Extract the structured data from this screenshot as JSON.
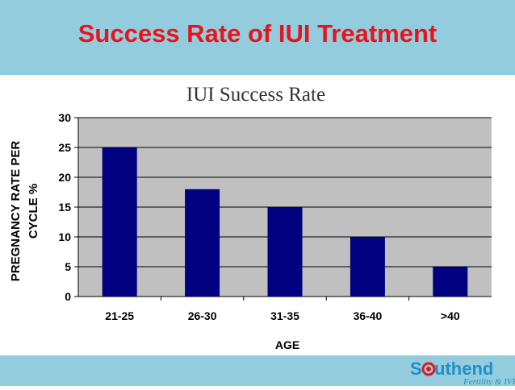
{
  "slide": {
    "title": "Success Rate of IUI Treatment",
    "header_bg": "#93CDDD",
    "title_color": "#E8141C"
  },
  "chart_data": {
    "type": "bar",
    "title": "IUI Success Rate",
    "xlabel": "AGE",
    "ylabel": "PREGNANCY RATE PER CYCLE %",
    "categories": [
      "21-25",
      "26-30",
      "31-35",
      "36-40",
      ">40"
    ],
    "values": [
      25,
      18,
      15,
      10,
      5
    ],
    "ylim": [
      0,
      30
    ],
    "yticks": [
      0,
      5,
      10,
      15,
      20,
      25,
      30
    ],
    "grid": true,
    "bar_color": "#000080",
    "plot_bg": "#C0C0C0"
  },
  "logo": {
    "text_prefix": "S",
    "text_suffix": "uthend",
    "subtitle": "Fertility & IVF"
  }
}
